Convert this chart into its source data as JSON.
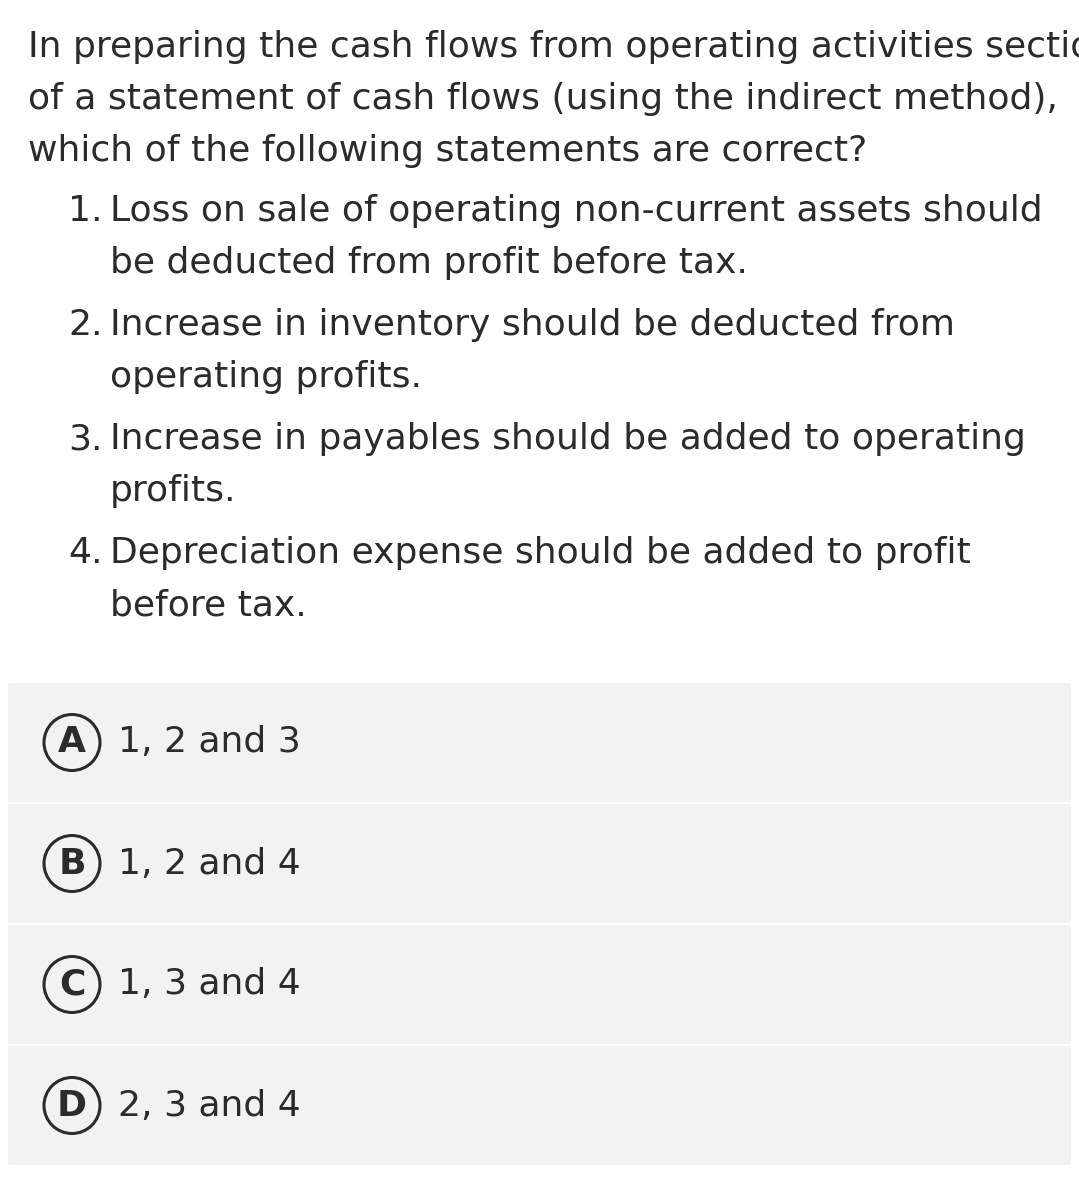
{
  "background_color": "#ffffff",
  "question_text_lines": [
    "In preparing the cash flows from operating activities section",
    "of a statement of cash flows (using the indirect method),",
    "which of the following statements are correct?"
  ],
  "numbered_items": [
    {
      "number": "1.",
      "line1": "Loss on sale of operating non-current assets should",
      "line2": "be deducted from profit before tax."
    },
    {
      "number": "2.",
      "line1": "Increase in inventory should be deducted from",
      "line2": "operating profits."
    },
    {
      "number": "3.",
      "line1": "Increase in payables should be added to operating",
      "line2": "profits."
    },
    {
      "number": "4.",
      "line1": "Depreciation expense should be added to profit",
      "line2": "before tax."
    }
  ],
  "options": [
    {
      "letter": "A",
      "text": "1, 2 and 3"
    },
    {
      "letter": "B",
      "text": "1, 2 and 4"
    },
    {
      "letter": "C",
      "text": "1, 3 and 4"
    },
    {
      "letter": "D",
      "text": "2, 3 and 4"
    }
  ],
  "text_color": "#2b2b2b",
  "option_bg_color": "#f2f2f2",
  "font_size_question": 26,
  "font_size_options": 26,
  "circle_linewidth": 2.2,
  "fig_width": 10.79,
  "fig_height": 11.95,
  "dpi": 100
}
